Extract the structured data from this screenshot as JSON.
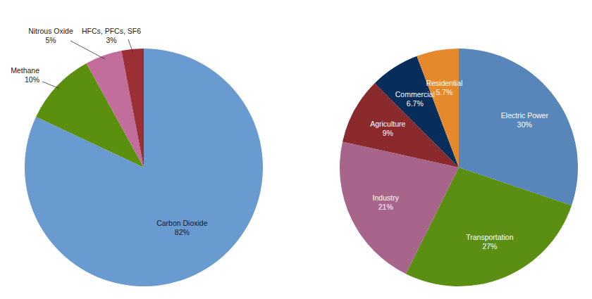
{
  "chart_data": [
    {
      "type": "pie",
      "categories": [
        "Carbon Dioxide",
        "Methane",
        "Nitrous Oxide",
        "HFCs, PFCs, SF6"
      ],
      "values": [
        82,
        10,
        5,
        3
      ],
      "value_labels": [
        "82%",
        "10%",
        "5%",
        "3%"
      ],
      "colors": [
        "#6a9bd0",
        "#5b900f",
        "#c26d9b",
        "#9c2f33"
      ],
      "data_labels": true
    },
    {
      "type": "pie",
      "categories": [
        "Electric Power",
        "Transportation",
        "Industry",
        "Agriculture",
        "Commercial",
        "Residential"
      ],
      "values": [
        30,
        27,
        21,
        9,
        6.7,
        5.7
      ],
      "value_labels": [
        "30%",
        "27%",
        "21%",
        "9%",
        "6.7%",
        "5.7%"
      ],
      "colors": [
        "#5886ba",
        "#5b8f14",
        "#a8658b",
        "#8a2a2c",
        "#072d5a",
        "#e5892d"
      ],
      "data_labels": true
    }
  ]
}
